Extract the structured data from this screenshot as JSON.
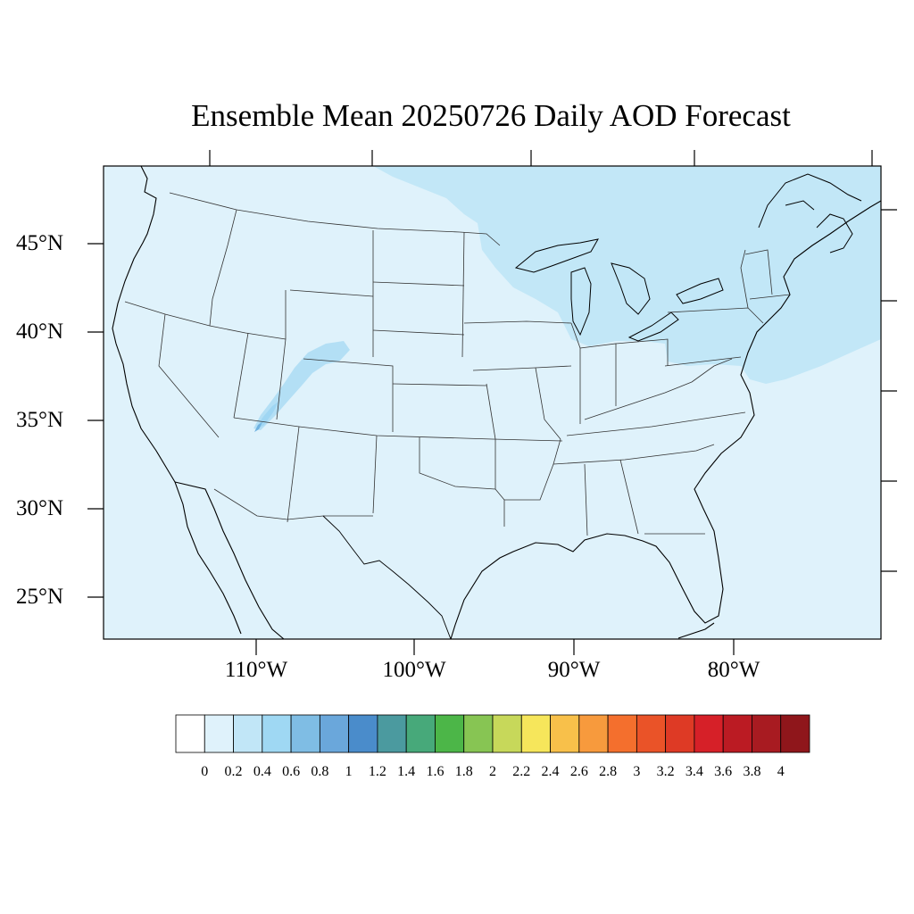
{
  "title": "Ensemble Mean 20250726 Daily AOD Forecast",
  "map": {
    "projection": "conic",
    "region": "Contiguous United States",
    "lat_labels": [
      "45°N",
      "40°N",
      "35°N",
      "30°N",
      "25°N"
    ],
    "lon_labels": [
      "110°W",
      "100°W",
      "90°W",
      "80°W"
    ],
    "background_color": "#dff2fb",
    "feature_colors": {
      "elevated": "#c2e7f7",
      "plume": "#9fd6f3",
      "plume_core": "#6fb2e0"
    }
  },
  "colorbar": {
    "labels": [
      "0",
      "0.2",
      "0.4",
      "0.6",
      "0.8",
      "1",
      "1.2",
      "1.4",
      "1.6",
      "1.8",
      "2",
      "2.2",
      "2.4",
      "2.6",
      "2.8",
      "3",
      "3.2",
      "3.4",
      "3.6",
      "3.8",
      "4"
    ],
    "colors": [
      "#ffffff",
      "#dff2fb",
      "#c1e6f7",
      "#9fd8f3",
      "#7fbde4",
      "#6aa7db",
      "#4a8ccb",
      "#4b9a9f",
      "#47a97a",
      "#4cb648",
      "#87c553",
      "#c7d85a",
      "#f6e65b",
      "#f8c04a",
      "#f79a3d",
      "#f46f2d",
      "#ea5328",
      "#de3a25",
      "#d62028",
      "#bb1b23",
      "#a81b21",
      "#8f161b"
    ]
  }
}
